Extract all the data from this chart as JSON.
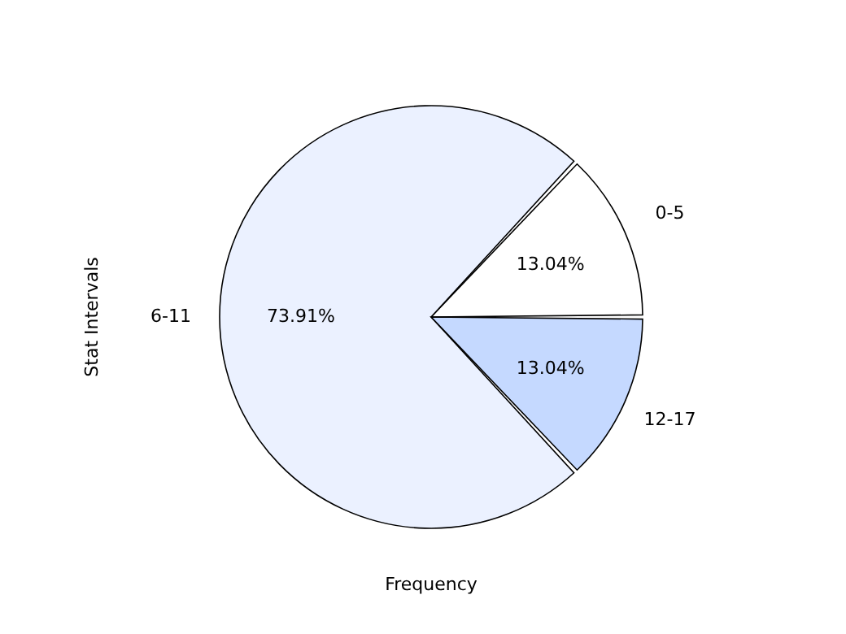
{
  "chart_data": {
    "type": "pie",
    "categories": [
      "0-5",
      "6-11",
      "12-17"
    ],
    "values": [
      13.04,
      73.91,
      13.04
    ],
    "colors": [
      "#ffffff",
      "#ebf1ff",
      "#c5d9ff"
    ],
    "value_labels": [
      "13.04%",
      "73.91%",
      "13.04%"
    ],
    "xlabel": "Frequency",
    "ylabel": "Stat Intervals"
  }
}
